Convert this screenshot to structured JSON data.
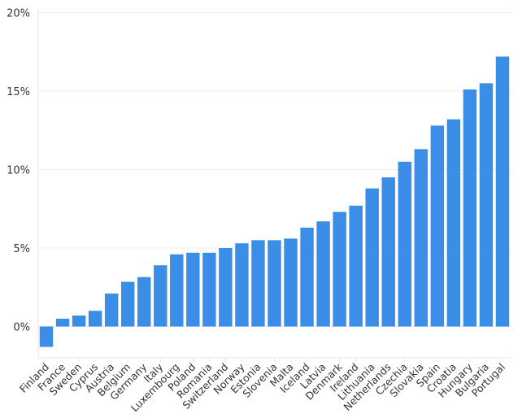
{
  "chart_data": {
    "type": "bar",
    "title": "",
    "xlabel": "",
    "ylabel": "",
    "ylim": [
      -2,
      20
    ],
    "yticks": [
      0,
      5,
      10,
      15,
      20
    ],
    "ytick_labels": [
      "0%",
      "5%",
      "10%",
      "15%",
      "20%"
    ],
    "grid": true,
    "bar_color": "#3a8ee6",
    "categories": [
      "Finland",
      "France",
      "Sweden",
      "Cyprus",
      "Austria",
      "Belgium",
      "Germany",
      "Italy",
      "Luxembourg",
      "Poland",
      "Romania",
      "Switzerland",
      "Norway",
      "Estonia",
      "Slovenia",
      "Malta",
      "Iceland",
      "Latvia",
      "Denmark",
      "Ireland",
      "Lithuania",
      "Netherlands",
      "Czechia",
      "Slovakia",
      "Spain",
      "Croatia",
      "Hungary",
      "Bulgaria",
      "Portugal"
    ],
    "values": [
      -1.3,
      0.5,
      0.7,
      1.0,
      2.1,
      2.85,
      3.15,
      3.9,
      4.6,
      4.7,
      4.7,
      5.0,
      5.3,
      5.5,
      5.5,
      5.6,
      6.3,
      6.7,
      7.3,
      7.7,
      8.8,
      9.5,
      10.5,
      11.3,
      12.8,
      13.2,
      15.1,
      15.5,
      17.2
    ]
  }
}
